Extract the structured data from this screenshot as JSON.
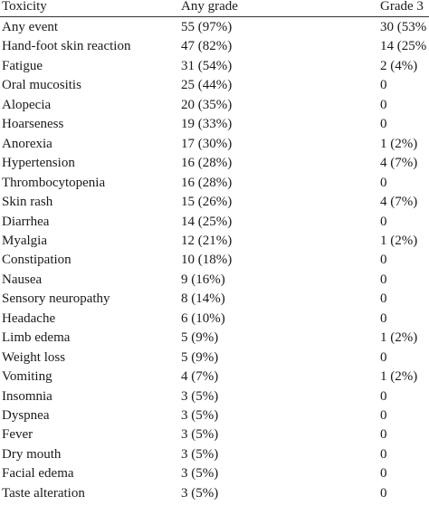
{
  "table": {
    "headers": [
      "Toxicity",
      "Any grade",
      "Grade 3"
    ],
    "rows": [
      [
        "Any event",
        "55 (97%)",
        "30 (53%"
      ],
      [
        "Hand-foot skin reaction",
        "47 (82%)",
        "14 (25%"
      ],
      [
        "Fatigue",
        "31 (54%)",
        "2 (4%)"
      ],
      [
        "Oral mucositis",
        "25 (44%)",
        "0"
      ],
      [
        "Alopecia",
        "20 (35%)",
        "0"
      ],
      [
        "Hoarseness",
        "19 (33%)",
        "0"
      ],
      [
        "Anorexia",
        "17 (30%)",
        "1 (2%)"
      ],
      [
        "Hypertension",
        "16 (28%)",
        "4 (7%)"
      ],
      [
        "Thrombocytopenia",
        "16 (28%)",
        "0"
      ],
      [
        "Skin rash",
        "15 (26%)",
        "4 (7%)"
      ],
      [
        "Diarrhea",
        "14 (25%)",
        "0"
      ],
      [
        "Myalgia",
        "12 (21%)",
        "1 (2%)"
      ],
      [
        "Constipation",
        "10 (18%)",
        "0"
      ],
      [
        "Nausea",
        "9 (16%)",
        "0"
      ],
      [
        "Sensory neuropathy",
        "8 (14%)",
        "0"
      ],
      [
        "Headache",
        "6 (10%)",
        "0"
      ],
      [
        "Limb edema",
        "5 (9%)",
        "1 (2%)"
      ],
      [
        "Weight loss",
        "5 (9%)",
        "0"
      ],
      [
        "Vomiting",
        "4 (7%)",
        "1 (2%)"
      ],
      [
        "Insomnia",
        "3 (5%)",
        "0"
      ],
      [
        "Dyspnea",
        "3 (5%)",
        "0"
      ],
      [
        "Fever",
        "3 (5%)",
        "0"
      ],
      [
        "Dry mouth",
        "3 (5%)",
        "0"
      ],
      [
        "Facial edema",
        "3 (5%)",
        "0"
      ],
      [
        "Taste alteration",
        "3 (5%)",
        "0"
      ]
    ]
  }
}
